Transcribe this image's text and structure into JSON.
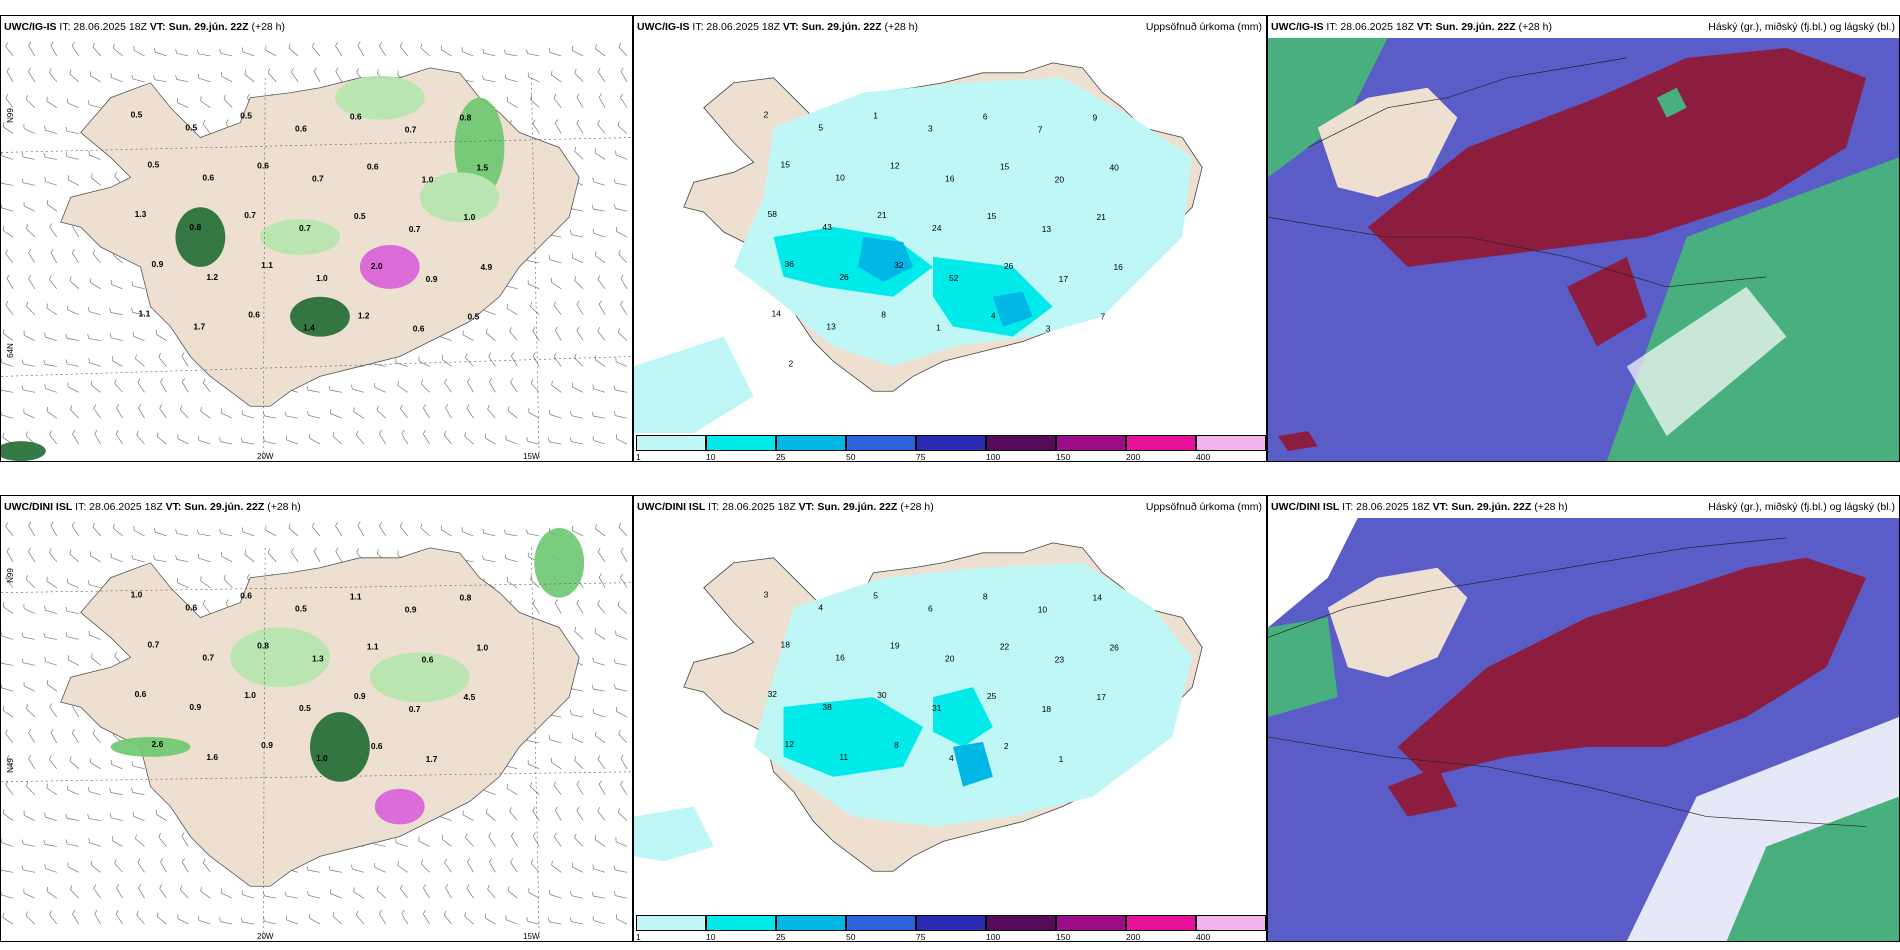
{
  "panels": {
    "top_wind": {
      "model": "UWC/IG-IS",
      "it_label": "IT: 28.06.2025 18Z",
      "vt_label": "VT: Sun. 29.jún. 22Z",
      "lead": "(+28 h)",
      "right_title": ""
    },
    "top_precip": {
      "model": "UWC/IG-IS",
      "it_label": "IT: 28.06.2025 18Z",
      "vt_label": "VT: Sun. 29.jún. 22Z",
      "lead": "(+28 h)",
      "right_title": "Uppsöfnuð úrkoma (mm)"
    },
    "top_cloud": {
      "model": "UWC/IG-IS",
      "it_label": "IT: 28.06.2025 18Z",
      "vt_label": "VT: Sun. 29.jún. 22Z",
      "lead": "(+28 h)",
      "right_title": "Háský (gr.), miðský (fj.bl.) og lágský (bl.)"
    },
    "bot_wind": {
      "model": "UWC/DINI ISL",
      "it_label": "IT: 28.06.2025 18Z",
      "vt_label": "VT: Sun. 29.jún. 22Z",
      "lead": "(+28 h)",
      "right_title": ""
    },
    "bot_precip": {
      "model": "UWC/DINI ISL",
      "it_label": "IT: 28.06.2025 18Z",
      "vt_label": "VT: Sun. 29.jún. 22Z",
      "lead": "(+28 h)",
      "right_title": "Uppsöfnuð úrkoma (mm)"
    },
    "bot_cloud": {
      "model": "UWC/DINI ISL",
      "it_label": "IT: 28.06.2025 18Z",
      "vt_label": "VT: Sun. 29.jún. 22Z",
      "lead": "(+28 h)",
      "right_title": "Háský (gr.), miðský (fj.bl.) og lágský (bl.)"
    }
  },
  "axes": {
    "lat_66": "66N",
    "lat_64": "64N",
    "lon_20": "20W",
    "lon_15": "15W",
    "lat_66_alt": "N99",
    "lat_64_alt": "N49"
  },
  "precip_colorbar": {
    "ticks": [
      "1",
      "10",
      "25",
      "50",
      "75",
      "100",
      "150",
      "200",
      "400"
    ],
    "colors": [
      "#bff7f7",
      "#00eaea",
      "#00b7e6",
      "#2e63dc",
      "#2a2ab4",
      "#5a0a5a",
      "#9b0c86",
      "#e8109a",
      "#f3b2ee"
    ]
  },
  "top_wind_values": [
    "0.5",
    "0.5",
    "0.5",
    "0.6",
    "0.6",
    "0.7",
    "0.8",
    "0.5",
    "0.6",
    "0.6",
    "0.7",
    "0.6",
    "1.0",
    "1.5",
    "1.3",
    "0.8",
    "0.7",
    "0.7",
    "0.5",
    "0.7",
    "1.0",
    "0.9",
    "1.2",
    "1.1",
    "1.0",
    "2.0",
    "0.9",
    "4.9",
    "1.1",
    "1.7",
    "0.6",
    "1.4",
    "1.2",
    "0.6",
    "0.5"
  ],
  "bot_wind_values": [
    "1.0",
    "0.6",
    "0.6",
    "0.5",
    "1.1",
    "0.9",
    "0.8",
    "0.7",
    "0.7",
    "0.8",
    "1.3",
    "1.1",
    "0.6",
    "1.0",
    "0.6",
    "0.9",
    "1.0",
    "0.5",
    "0.9",
    "0.7",
    "4.5",
    "2.6",
    "1.6",
    "0.9",
    "1.0",
    "0.6",
    "1.7"
  ],
  "top_precip_values": [
    "2",
    "5",
    "1",
    "3",
    "6",
    "7",
    "9",
    "15",
    "10",
    "12",
    "16",
    "15",
    "20",
    "40",
    "58",
    "43",
    "21",
    "24",
    "15",
    "13",
    "21",
    "36",
    "26",
    "32",
    "52",
    "26",
    "17",
    "16",
    "14",
    "13",
    "8",
    "1",
    "4",
    "3",
    "7",
    "2"
  ],
  "bot_precip_values": [
    "3",
    "4",
    "5",
    "6",
    "8",
    "10",
    "14",
    "18",
    "16",
    "19",
    "20",
    "22",
    "23",
    "26",
    "32",
    "38",
    "30",
    "31",
    "25",
    "18",
    "17",
    "12",
    "11",
    "8",
    "4",
    "2",
    "1"
  ],
  "colors": {
    "land": "#eee0d0",
    "sea": "#ffffff",
    "green_light": "#b5e6ad",
    "green_mid": "#6cc870",
    "green_dark": "#1f6b32",
    "magenta": "#d85fd8",
    "cyan_light": "#bff7f7",
    "high_cloud": "#8c1d3f",
    "mid_cloud": "#5a5cc8",
    "low_cloud": "#48b07e"
  }
}
